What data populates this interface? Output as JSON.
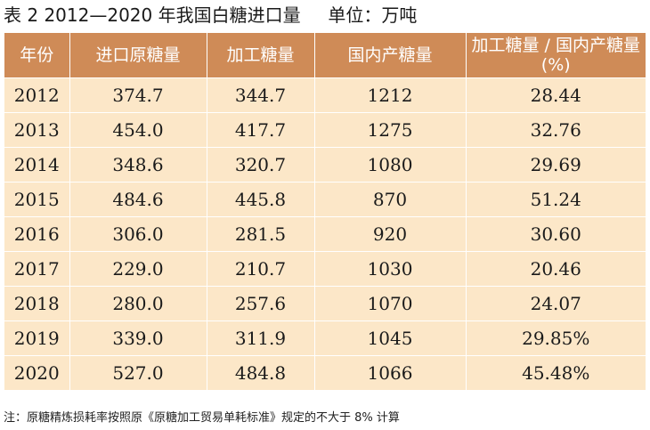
{
  "title": {
    "label": "表 2",
    "text": "2012—2020 年我国白糖进口量",
    "unit": "单位：万吨"
  },
  "table": {
    "headers": [
      "年份",
      "进口原糖量",
      "加工糖量",
      "国内产糖量",
      "加工糖量 / 国内产糖量 (%)"
    ],
    "rows": [
      [
        "2012",
        "374.7",
        "344.7",
        "1212",
        "28.44"
      ],
      [
        "2013",
        "454.0",
        "417.7",
        "1275",
        "32.76"
      ],
      [
        "2014",
        "348.6",
        "320.7",
        "1080",
        "29.69"
      ],
      [
        "2015",
        "484.6",
        "445.8",
        "870",
        "51.24"
      ],
      [
        "2016",
        "306.0",
        "281.5",
        "920",
        "30.60"
      ],
      [
        "2017",
        "229.0",
        "210.7",
        "1030",
        "20.46"
      ],
      [
        "2018",
        "280.0",
        "257.6",
        "1070",
        "24.07"
      ],
      [
        "2019",
        "339.0",
        "311.9",
        "1045",
        "29.85%"
      ],
      [
        "2020",
        "527.0",
        "484.8",
        "1066",
        "45.48%"
      ]
    ]
  },
  "note": "注：原糖精炼损耗率按照原《原糖加工贸易单耗标准》规定的不大于 8% 计算",
  "colors": {
    "header_bg": "#cf8b57",
    "row_bg": "#fce7c8"
  }
}
